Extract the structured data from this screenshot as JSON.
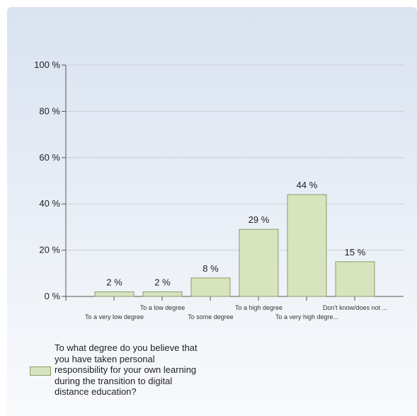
{
  "chart_data": {
    "type": "bar",
    "categories": [
      "To a very low degree",
      "To a low degree",
      "To some degree",
      "To a high degree",
      "To a very high degre...",
      "Don't know/does not ..."
    ],
    "series": [
      {
        "name": "To what degree do you believe that you have taken personal responsibility for your own learning during the transition to digital distance education?",
        "values": [
          2,
          2,
          8,
          29,
          44,
          15
        ]
      }
    ],
    "data_labels": [
      "2 %",
      "2 %",
      "8 %",
      "29 %",
      "44 %",
      "15 %"
    ],
    "y_ticks": [
      0,
      20,
      40,
      60,
      80,
      100
    ],
    "y_tick_labels": [
      "0 %",
      "20 %",
      "40 %",
      "60 %",
      "80 %",
      "100 %"
    ],
    "ylim": [
      0,
      100
    ],
    "grid": true,
    "legend_position": "bottom-left",
    "bar_color": "#d7e4bd",
    "bar_border_color": "#8a9c6a"
  }
}
